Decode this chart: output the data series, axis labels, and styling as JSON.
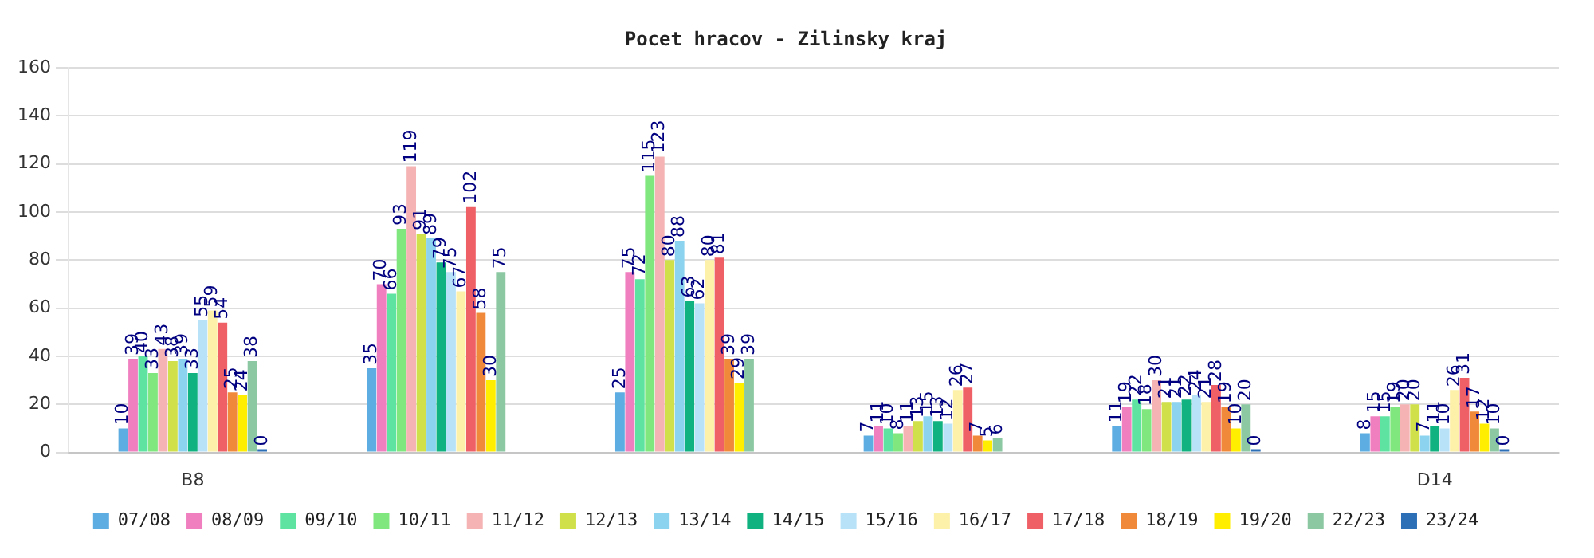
{
  "chart_data": {
    "type": "bar",
    "title": "Pocet hracov - Zilinsky kraj",
    "categories": [
      "B8",
      null,
      null,
      null,
      null,
      "D14"
    ],
    "series": [
      {
        "name": "07/08",
        "color": "#5dade2",
        "values": [
          10,
          35,
          25,
          7,
          11,
          8
        ]
      },
      {
        "name": "08/09",
        "color": "#f07fc0",
        "values": [
          39,
          70,
          75,
          11,
          19,
          15
        ]
      },
      {
        "name": "09/10",
        "color": "#5fe3a1",
        "values": [
          40,
          66,
          72,
          10,
          22,
          15
        ]
      },
      {
        "name": "10/11",
        "color": "#80e77f",
        "values": [
          33,
          93,
          115,
          8,
          18,
          19
        ]
      },
      {
        "name": "11/12",
        "color": "#f5b3b3",
        "values": [
          43,
          119,
          123,
          11,
          30,
          20
        ]
      },
      {
        "name": "12/13",
        "color": "#cfe04a",
        "values": [
          38,
          91,
          80,
          13,
          21,
          20
        ]
      },
      {
        "name": "13/14",
        "color": "#8bd3ee",
        "values": [
          39,
          89,
          88,
          15,
          21,
          7
        ]
      },
      {
        "name": "14/15",
        "color": "#10b27f",
        "values": [
          33,
          79,
          63,
          13,
          22,
          11
        ]
      },
      {
        "name": "15/16",
        "color": "#b8e2f8",
        "values": [
          55,
          75,
          62,
          12,
          24,
          10
        ]
      },
      {
        "name": "16/17",
        "color": "#fdf0a8",
        "values": [
          59,
          67,
          80,
          26,
          21,
          26
        ]
      },
      {
        "name": "17/18",
        "color": "#ef5f66",
        "values": [
          54,
          102,
          81,
          27,
          28,
          31
        ]
      },
      {
        "name": "18/19",
        "color": "#f0893a",
        "values": [
          25,
          58,
          39,
          7,
          19,
          17
        ]
      },
      {
        "name": "19/20",
        "color": "#ffee00",
        "values": [
          24,
          30,
          29,
          5,
          10,
          12
        ]
      },
      {
        "name": "22/23",
        "color": "#8cc9a3",
        "values": [
          38,
          75,
          39,
          6,
          20,
          10
        ]
      },
      {
        "name": "23/24",
        "color": "#2c6fb7",
        "values": [
          0,
          null,
          null,
          null,
          0,
          0
        ]
      }
    ],
    "ylim": [
      0,
      160
    ],
    "yticks": [
      0,
      20,
      40,
      60,
      80,
      100,
      120,
      140,
      160
    ],
    "grid": "y",
    "legend": "bottom",
    "data_labels": true
  }
}
